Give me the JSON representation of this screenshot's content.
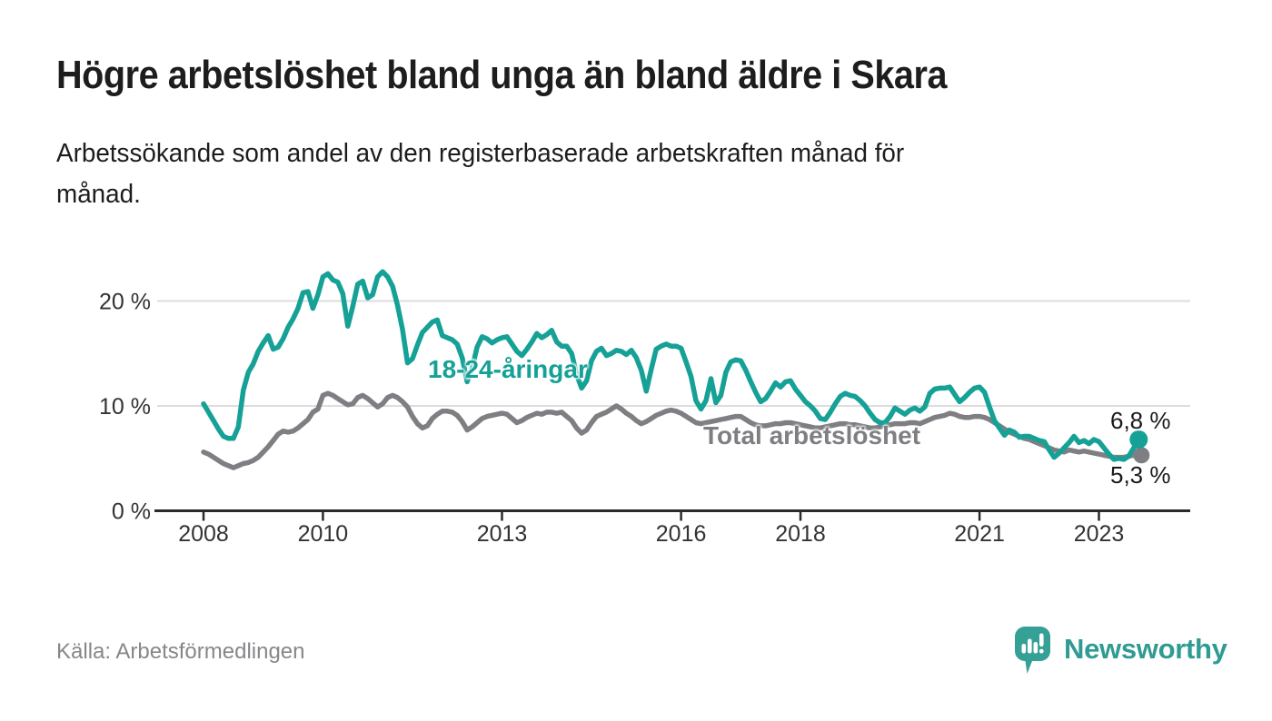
{
  "title": "Högre arbetslöshet bland unga än bland äldre i Skara",
  "subtitle": {
    "line1": "Arbetssökande som andel av den registerbaserade arbetskraften månad för",
    "line2": "månad."
  },
  "source": "Källa: Arbetsförmedlingen",
  "branding": {
    "name": "Newsworthy",
    "icon": "bar-chart-speech-bubble-icon"
  },
  "colors": {
    "accent_teal": "#16a196",
    "line_gray": "#7f7f83",
    "grid": "#dddddd",
    "axis": "#2b2b2b",
    "axis_text": "#333333",
    "text_dark": "#1d1d1d",
    "source_text": "#87878b",
    "logo_teal": "#35a096",
    "logo_text_teal": "#2f9b93"
  },
  "chart_data": {
    "type": "line",
    "title": "Högre arbetslöshet bland unga än bland äldre i Skara",
    "xlabel": "",
    "ylabel": "Arbetssökande som andel av den registerbaserade arbetskraften (%)",
    "x_unit": "år/månad",
    "y_unit": "%",
    "ylim": [
      0,
      24
    ],
    "xlim": [
      2008.0,
      2024.5
    ],
    "grid": "horizontal",
    "legend_position": "inline-labels",
    "x_ticks": [
      2008,
      2010,
      2013,
      2016,
      2018,
      2021,
      2023
    ],
    "y_ticks": [
      0,
      10,
      20
    ],
    "y_tick_labels": [
      "0 %",
      "10 %",
      "20 %"
    ],
    "sampling": "monthly",
    "series": [
      {
        "name": "Total arbetslöshet",
        "color": "#7f7f83",
        "end_label": "5,3 %",
        "end_value": 5.3,
        "start_year": 2008,
        "start_month": 1,
        "values": [
          5.6,
          5.4,
          5.1,
          4.8,
          4.5,
          4.3,
          4.1,
          4.3,
          4.5,
          4.6,
          4.8,
          5.1,
          5.6,
          6.1,
          6.7,
          7.3,
          7.6,
          7.5,
          7.6,
          7.9,
          8.3,
          8.7,
          9.4,
          9.7,
          11.0,
          11.2,
          11.0,
          10.7,
          10.4,
          10.1,
          10.2,
          10.8,
          11.0,
          10.7,
          10.3,
          9.9,
          10.2,
          10.8,
          11.0,
          10.8,
          10.4,
          9.9,
          9.0,
          8.3,
          7.9,
          8.1,
          8.8,
          9.2,
          9.5,
          9.5,
          9.4,
          9.1,
          8.5,
          7.7,
          8.0,
          8.4,
          8.8,
          9.0,
          9.1,
          9.2,
          9.3,
          9.2,
          8.8,
          8.4,
          8.6,
          8.9,
          9.1,
          9.3,
          9.2,
          9.4,
          9.4,
          9.3,
          9.4,
          9.0,
          8.6,
          7.9,
          7.4,
          7.7,
          8.4,
          9.0,
          9.2,
          9.4,
          9.7,
          10.0,
          9.7,
          9.3,
          9.0,
          8.6,
          8.3,
          8.5,
          8.8,
          9.1,
          9.3,
          9.5,
          9.6,
          9.5,
          9.3,
          9.0,
          8.7,
          8.4,
          8.3,
          8.4,
          8.5,
          8.6,
          8.7,
          8.8,
          8.9,
          9.0,
          9.0,
          8.7,
          8.4,
          8.2,
          8.1,
          8.1,
          8.2,
          8.3,
          8.3,
          8.4,
          8.4,
          8.3,
          8.2,
          8.1,
          8.0,
          7.9,
          7.9,
          8.0,
          8.1,
          8.2,
          8.3,
          8.3,
          8.2,
          8.2,
          8.1,
          8.0,
          7.9,
          7.9,
          8.0,
          8.1,
          8.2,
          8.3,
          8.3,
          8.3,
          8.4,
          8.4,
          8.3,
          8.5,
          8.7,
          8.9,
          9.0,
          9.1,
          9.3,
          9.2,
          9.0,
          8.9,
          8.9,
          9.0,
          9.0,
          8.9,
          8.7,
          8.4,
          8.1,
          7.8,
          7.5,
          7.3,
          7.1,
          6.9,
          6.8,
          6.6,
          6.4,
          6.2,
          6.0,
          5.8,
          5.7,
          5.6,
          5.8,
          5.7,
          5.6,
          5.7,
          5.6,
          5.5,
          5.4,
          5.3,
          5.2,
          5.1,
          5.1,
          5.1,
          5.2,
          5.3,
          5.3
        ]
      },
      {
        "name": "18-24-åringar",
        "color": "#16a196",
        "end_label": "6,8 %",
        "end_value": 6.8,
        "start_year": 2008,
        "start_month": 1,
        "values": [
          10.2,
          9.4,
          8.6,
          7.8,
          7.1,
          6.9,
          6.9,
          8.0,
          11.5,
          13.2,
          14.0,
          15.2,
          16.0,
          16.7,
          15.4,
          15.6,
          16.4,
          17.5,
          18.3,
          19.3,
          20.8,
          20.9,
          19.3,
          20.6,
          22.3,
          22.6,
          22.0,
          21.8,
          20.7,
          17.6,
          19.5,
          21.6,
          21.9,
          20.3,
          20.6,
          22.3,
          22.8,
          22.3,
          21.4,
          19.6,
          17.3,
          14.1,
          14.5,
          15.8,
          17.0,
          17.5,
          18.0,
          18.2,
          16.7,
          16.5,
          16.3,
          15.9,
          14.6,
          12.3,
          13.6,
          15.6,
          16.6,
          16.4,
          16.0,
          16.3,
          16.5,
          16.6,
          15.9,
          15.2,
          14.8,
          15.4,
          16.1,
          16.9,
          16.5,
          16.8,
          17.2,
          16.1,
          15.7,
          15.7,
          15.0,
          13.0,
          11.7,
          12.4,
          14.3,
          15.2,
          15.5,
          14.8,
          15.0,
          15.3,
          15.2,
          14.9,
          15.3,
          14.6,
          13.4,
          11.4,
          13.5,
          15.4,
          15.7,
          15.9,
          15.7,
          15.7,
          15.5,
          14.2,
          12.8,
          10.5,
          9.7,
          10.5,
          12.6,
          10.3,
          11.0,
          13.2,
          14.2,
          14.4,
          14.3,
          13.4,
          12.3,
          11.3,
          10.4,
          10.7,
          11.4,
          12.2,
          11.8,
          12.3,
          12.4,
          11.6,
          11.0,
          10.4,
          10.0,
          9.5,
          8.8,
          8.7,
          9.4,
          10.2,
          10.9,
          11.2,
          11.0,
          10.9,
          10.5,
          10.0,
          9.3,
          8.7,
          8.4,
          8.4,
          9.0,
          9.8,
          9.5,
          9.2,
          9.6,
          9.8,
          9.5,
          9.9,
          11.2,
          11.6,
          11.7,
          11.7,
          11.8,
          11.1,
          10.4,
          10.8,
          11.3,
          11.7,
          11.8,
          11.3,
          9.9,
          8.6,
          7.9,
          7.2,
          7.7,
          7.5,
          7.0,
          7.1,
          7.1,
          6.9,
          6.7,
          6.6,
          5.8,
          5.1,
          5.5,
          6.0,
          6.5,
          7.1,
          6.5,
          6.7,
          6.4,
          6.8,
          6.6,
          6.0,
          5.4,
          4.9,
          5.0,
          4.9,
          5.2,
          6.0,
          6.8
        ]
      }
    ]
  }
}
